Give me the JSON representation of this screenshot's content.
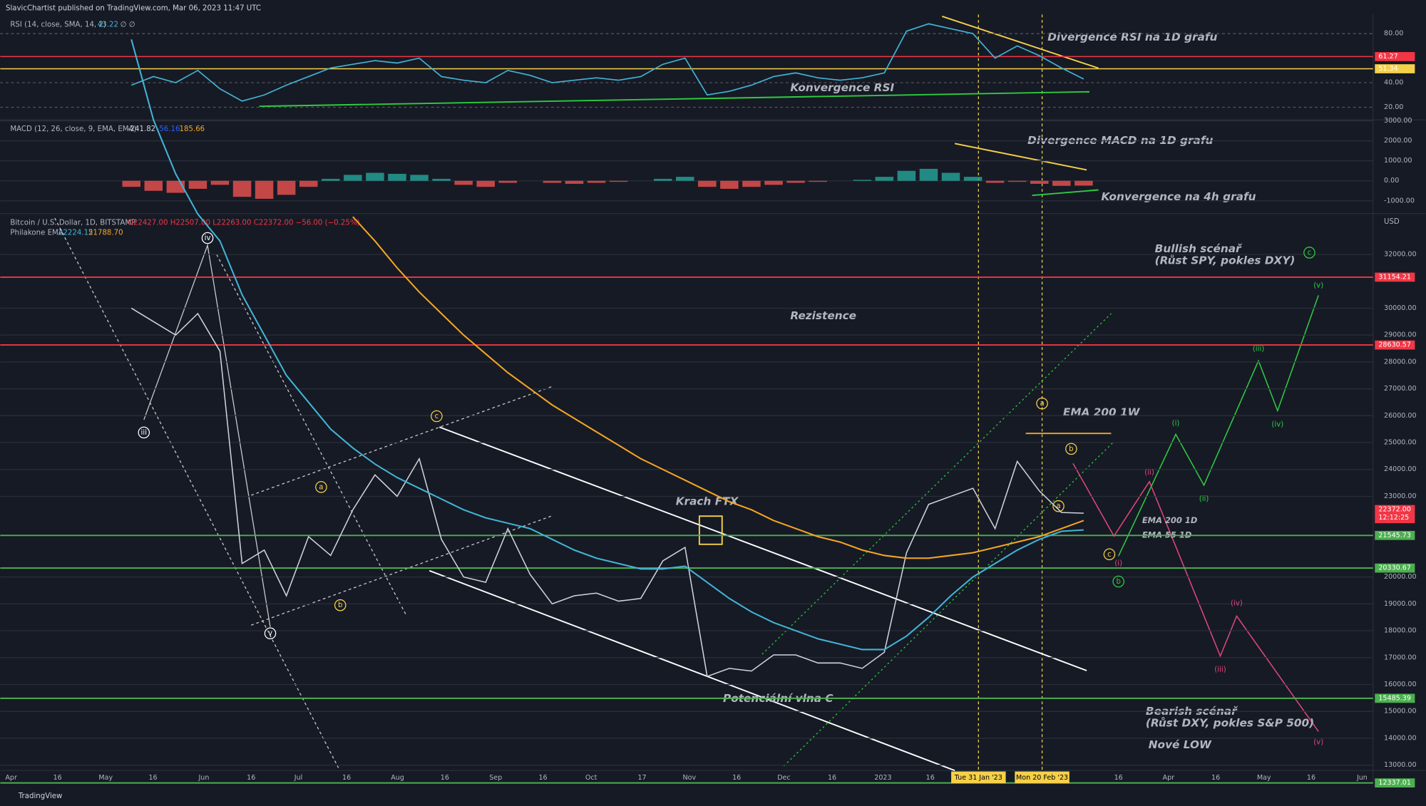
{
  "header": {
    "publisher": "SlavicChartist published on TradingView.com, Mar 06, 2023 11:47 UTC",
    "logo": "TradingView"
  },
  "rsi": {
    "legend": "RSI (14, close, SMA, 14, 2)",
    "value": "43.22",
    "extra": "∅ ∅",
    "yticks": [
      {
        "value": 80,
        "label": "80.00"
      },
      {
        "value": 40,
        "label": "40.00"
      },
      {
        "value": 20,
        "label": "20.00"
      }
    ],
    "levels": [
      {
        "value": 61.27,
        "label": "61.27",
        "color": "#f23645"
      },
      {
        "value": 51.34,
        "label": "51.34",
        "color": "#f5d04a"
      }
    ],
    "values": [
      38,
      45,
      40,
      50,
      35,
      25,
      30,
      38,
      45,
      52,
      55,
      58,
      56,
      60,
      45,
      42,
      40,
      50,
      46,
      40,
      42,
      44,
      42,
      45,
      55,
      60,
      30,
      33,
      38,
      45,
      48,
      44,
      42,
      44,
      48,
      82,
      88,
      84,
      80,
      60,
      70,
      62,
      52,
      43
    ]
  },
  "macd": {
    "legend": "MACD (12, 26, close, 9, EMA, EMA)",
    "hist": "-241.82",
    "macd": "-56.16",
    "signal": "185.66",
    "yticks": [
      {
        "value": 3000,
        "label": "3000.00"
      },
      {
        "value": 2000,
        "label": "2000.00"
      },
      {
        "value": 1000,
        "label": "1000.00"
      },
      {
        "value": 0,
        "label": "0.00"
      },
      {
        "value": -1000,
        "label": "-1000.00"
      }
    ],
    "values": [
      -300,
      -500,
      -600,
      -400,
      -200,
      -800,
      -900,
      -700,
      -300,
      100,
      300,
      400,
      350,
      300,
      100,
      -200,
      -300,
      -100,
      0,
      -100,
      -150,
      -100,
      -50,
      0,
      100,
      200,
      -300,
      -400,
      -300,
      -200,
      -100,
      -50,
      0,
      50,
      200,
      500,
      600,
      400,
      200,
      -100,
      -50,
      -150,
      -250,
      -240
    ]
  },
  "main": {
    "symbol": "Bitcoin / U.S. Dollar, 1D, BITSTAMP",
    "ohlc": "O22427.00 H22507.00 L22263.00 C22372.00 −56.00 (−0.25%)",
    "ema_legend": "Philakone EMA",
    "ema_a": "22224.15",
    "ema_b": "21788.70",
    "currency": "USD",
    "yticks": [
      {
        "value": 32000,
        "label": "32000.00"
      },
      {
        "value": 30000,
        "label": "30000.00"
      },
      {
        "value": 29000,
        "label": "29000.00"
      },
      {
        "value": 28000,
        "label": "28000.00"
      },
      {
        "value": 27000,
        "label": "27000.00"
      },
      {
        "value": 26000,
        "label": "26000.00"
      },
      {
        "value": 25000,
        "label": "25000.00"
      },
      {
        "value": 24000,
        "label": "24000.00"
      },
      {
        "value": 23000,
        "label": "23000.00"
      },
      {
        "value": 20000,
        "label": "20000.00"
      },
      {
        "value": 19000,
        "label": "19000.00"
      },
      {
        "value": 18000,
        "label": "18000.00"
      },
      {
        "value": 17000,
        "label": "17000.00"
      },
      {
        "value": 16000,
        "label": "16000.00"
      },
      {
        "value": 15000,
        "label": "15000.00"
      },
      {
        "value": 14000,
        "label": "14000.00"
      },
      {
        "value": 13000,
        "label": "13000.00"
      }
    ],
    "levels": [
      {
        "value": 31154.21,
        "label": "31154.21",
        "color": "#f23645"
      },
      {
        "value": 28630.57,
        "label": "28630.57",
        "color": "#f23645"
      },
      {
        "value": 21545.73,
        "label": "21545.73",
        "color": "#4caf50"
      },
      {
        "value": 20330.67,
        "label": "20330.67",
        "color": "#4caf50"
      },
      {
        "value": 15485.39,
        "label": "15485.39",
        "color": "#4caf50"
      },
      {
        "value": 12337.01,
        "label": "12337.01",
        "color": "#4caf50"
      }
    ],
    "price_badge": {
      "value": 22372,
      "label": "22372.00",
      "countdown": "12:12:25"
    },
    "series": [
      {
        "name": "BTCUSD",
        "color": "#d1d4dc",
        "values": [
          30000,
          29500,
          29000,
          29800,
          28400,
          20500,
          21000,
          19300,
          21500,
          20800,
          22500,
          23800,
          23000,
          24400,
          21400,
          20000,
          19800,
          21800,
          20100,
          19000,
          19300,
          19400,
          19100,
          19200,
          20600,
          21100,
          16300,
          16600,
          16500,
          17100,
          17100,
          16800,
          16800,
          16600,
          17200,
          20900,
          22700,
          23000,
          23300,
          21800,
          24300,
          23200,
          22400,
          22372
        ]
      },
      {
        "name": "EMA 55",
        "color": "#42b4d6",
        "values": [
          40000,
          37000,
          35000,
          33500,
          32500,
          30500,
          29000,
          27500,
          26500,
          25500,
          24800,
          24200,
          23700,
          23300,
          22900,
          22500,
          22200,
          22000,
          21800,
          21400,
          21000,
          20700,
          20500,
          20300,
          20300,
          20400,
          19800,
          19200,
          18700,
          18300,
          18000,
          17700,
          17500,
          17300,
          17300,
          17800,
          18500,
          19300,
          20000,
          20500,
          21000,
          21400,
          21700,
          21750
        ]
      },
      {
        "name": "EMA 200",
        "color": "#f5a623",
        "values": [
          null,
          null,
          null,
          null,
          null,
          null,
          null,
          null,
          null,
          null,
          33400,
          32500,
          31500,
          30600,
          29800,
          29000,
          28300,
          27600,
          27000,
          26400,
          25900,
          25400,
          24900,
          24400,
          24000,
          23600,
          23200,
          22800,
          22500,
          22100,
          21800,
          21500,
          21300,
          21000,
          20800,
          20700,
          20700,
          20800,
          20900,
          21100,
          21300,
          21500,
          21800,
          22100
        ]
      }
    ]
  },
  "xaxis": [
    "Apr",
    "16",
    "May",
    "16",
    "Jun",
    "16",
    "Jul",
    "16",
    "Aug",
    "16",
    "Sep",
    "16",
    "Oct",
    "17",
    "Nov",
    "16",
    "Dec",
    "16",
    "2023",
    "16",
    "16",
    "Apr",
    "16",
    "May",
    "16",
    "Jun"
  ],
  "date_badges": [
    "Tue 31 Jan '23",
    "Mon 20 Feb '23"
  ],
  "annotations": {
    "rsi_div": "Divergence RSI na 1D grafu",
    "rsi_conv": "Konvergence RSI",
    "macd_div": "Divergence MACD na 1D grafu",
    "macd_conv": "Konvergence na 4h grafu",
    "bull1": "Bullish scénař",
    "bull2": "(Růst SPY, pokles DXY)",
    "rez": "Rezistence",
    "ema200w": "EMA 200 1W",
    "krach": "Krach FTX",
    "ema200d": "EMA 200 1D",
    "ema55d": "EMA 55 1D",
    "vlnac": "Potenciální vlna C",
    "bear1": "Bearish scénař",
    "bear2": "(Růst DXY, pokles S&P 500)",
    "low": "Nové LOW"
  },
  "waves": [
    "iii",
    "iv",
    "v",
    "a",
    "b",
    "c",
    "a",
    "b",
    "a",
    "c",
    "b",
    "c",
    "(v)",
    "(iii)",
    "(i)",
    "(iv)",
    "(ii)",
    "(ii)",
    "(i)",
    "(iv)",
    "(iii)",
    "(v)"
  ]
}
